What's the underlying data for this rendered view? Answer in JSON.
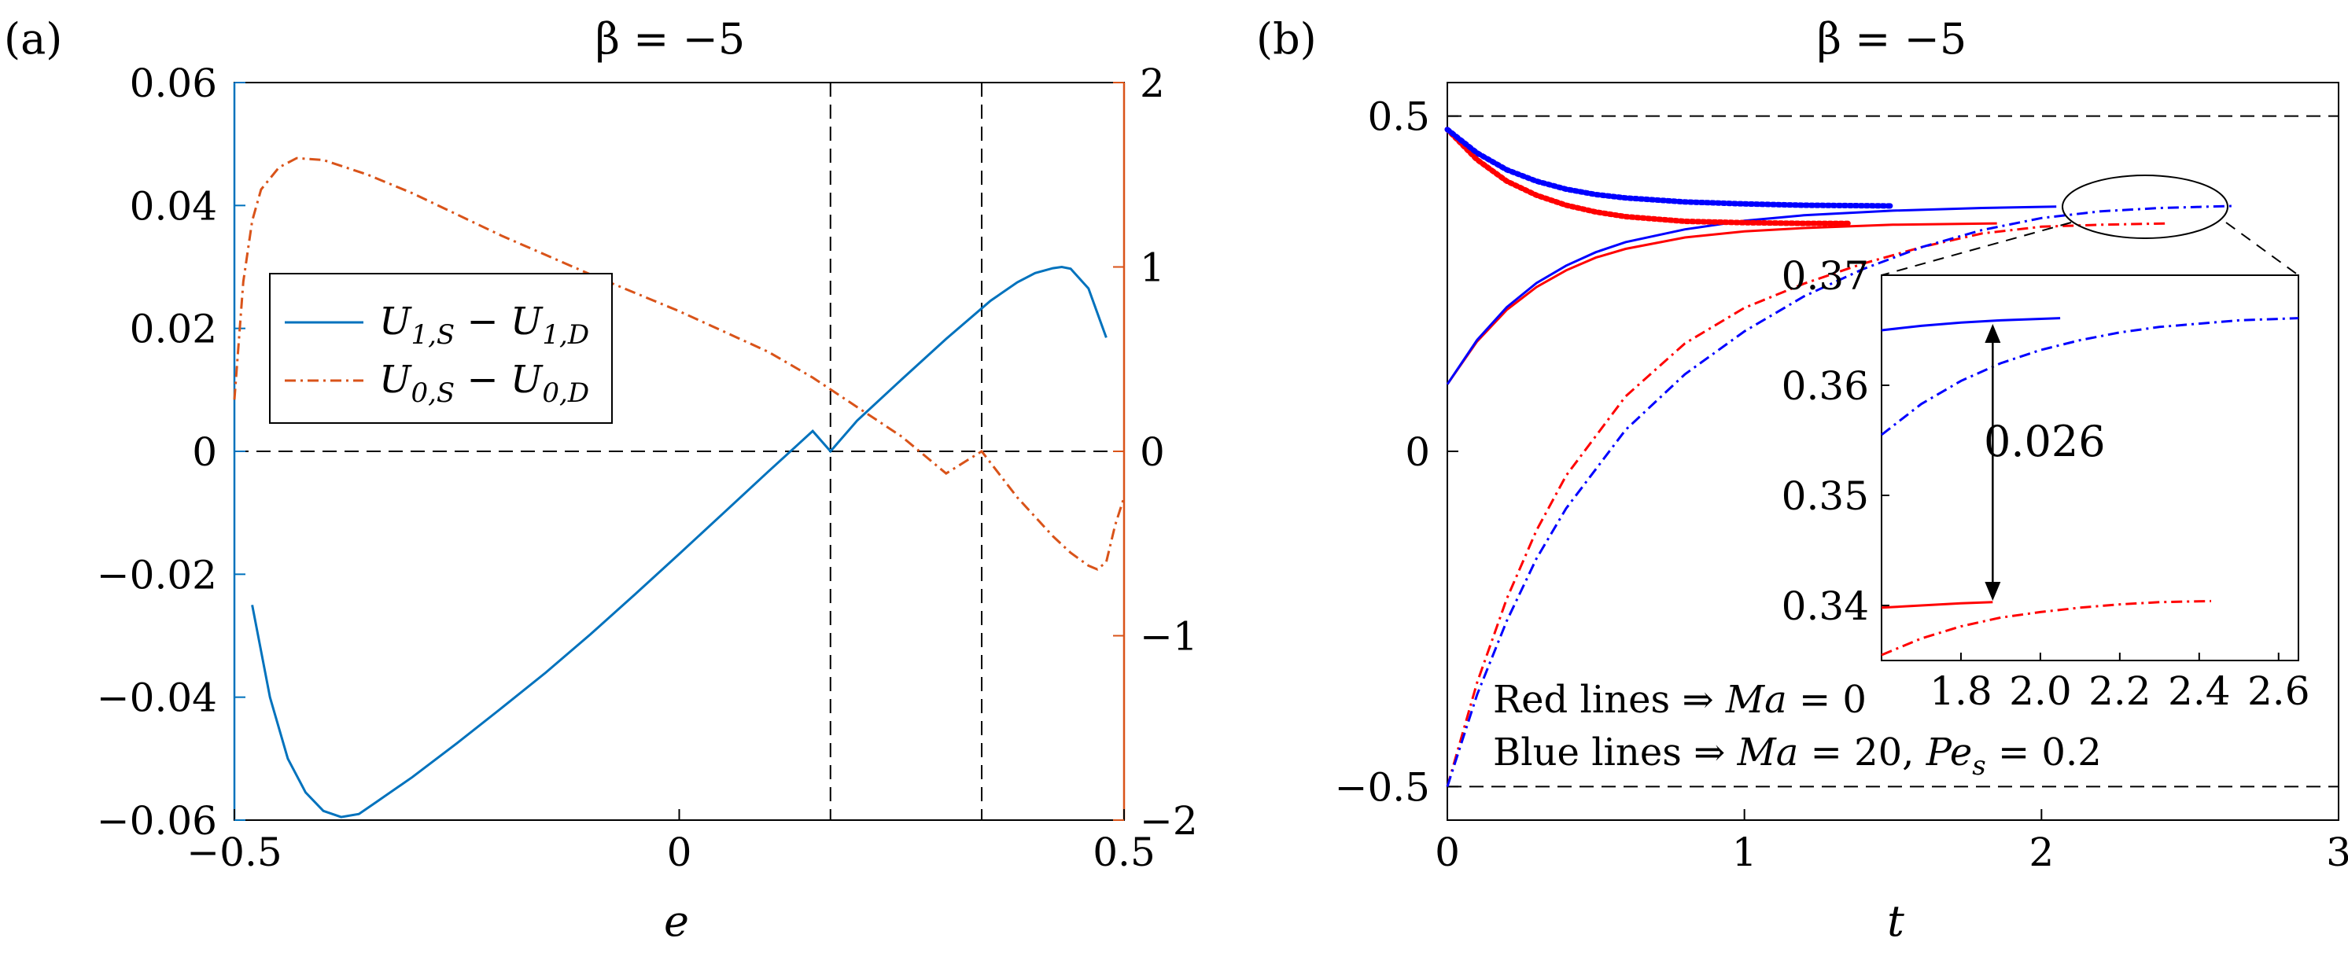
{
  "panels": {
    "a": {
      "label": "(a)",
      "title": "β = −5",
      "xlabel": "e",
      "ylim_left": [
        -0.06,
        0.06
      ],
      "ylim_right": [
        -2,
        2
      ],
      "xlim": [
        -0.5,
        0.5
      ],
      "x_ticks": [
        "−0.5",
        "0",
        "0.5"
      ],
      "left_ticks": [
        "−0.06",
        "−0.04",
        "−0.02",
        "0",
        "0.02",
        "0.04",
        "0.06"
      ],
      "right_ticks": [
        "−2",
        "−1",
        "0",
        "1",
        "2"
      ],
      "legend": [
        {
          "main": "U",
          "sub": "1,S",
          "minus": " − ",
          "main2": "U",
          "sub2": "1,D"
        },
        {
          "main": "U",
          "sub": "0,S",
          "minus": " − ",
          "main2": "U",
          "sub2": "0,D"
        }
      ],
      "colors": {
        "left_axis": "#0072BD",
        "right_axis": "#D95319"
      }
    },
    "b": {
      "label": "(b)",
      "title": "β = −5",
      "xlabel": "t",
      "xlim": [
        0,
        3
      ],
      "ylim": [
        -0.55,
        0.55
      ],
      "x_ticks": [
        "0",
        "1",
        "2",
        "3"
      ],
      "y_ticks": [
        "−0.5",
        "0",
        "0.5"
      ],
      "inset": {
        "xlim": [
          1.6,
          2.65
        ],
        "ylim": [
          0.335,
          0.37
        ],
        "x_ticks": [
          "1.8",
          "2.0",
          "2.2",
          "2.4",
          "2.6"
        ],
        "y_ticks": [
          "0.34",
          "0.35",
          "0.36",
          "0.37"
        ],
        "gap_label": "0.026"
      },
      "notes": [
        {
          "pre": "Red lines ⇒ ",
          "expr": "Ma",
          "post": " = 0"
        },
        {
          "pre": "Blue lines ⇒ ",
          "expr": "Ma",
          "mid": " = 20, ",
          "expr2": "Pe",
          "sub2": "s",
          "post": " = 0.2"
        }
      ],
      "colors": {
        "red": "#FF0000",
        "blue": "#0000FF"
      }
    }
  },
  "chart_data": [
    {
      "type": "line",
      "title": "β = −5",
      "xlabel": "e",
      "ylabel": "",
      "xlim": [
        -0.5,
        0.5
      ],
      "ylim": [
        -0.06,
        0.06
      ],
      "ylim_right": [
        -2,
        2
      ],
      "reference_lines": {
        "horizontal": [
          0
        ],
        "vertical": [
          0.17,
          0.34
        ]
      },
      "series": [
        {
          "name": "U_{1,S} − U_{1,D}",
          "axis": "left",
          "style": "solid",
          "color": "#0072BD",
          "x": [
            -0.48,
            -0.46,
            -0.44,
            -0.42,
            -0.4,
            -0.38,
            -0.36,
            -0.34,
            -0.3,
            -0.25,
            -0.2,
            -0.15,
            -0.1,
            -0.05,
            0.0,
            0.05,
            0.1,
            0.15,
            0.17,
            0.2,
            0.25,
            0.3,
            0.35,
            0.38,
            0.4,
            0.42,
            0.43,
            0.44,
            0.46,
            0.48
          ],
          "y": [
            -0.025,
            -0.04,
            -0.05,
            -0.0555,
            -0.0585,
            -0.0595,
            -0.059,
            -0.057,
            -0.053,
            -0.0475,
            -0.0418,
            -0.036,
            -0.0298,
            -0.0233,
            -0.0167,
            -0.01,
            -0.0033,
            0.0033,
            0.0,
            0.005,
            0.0117,
            0.0183,
            0.0245,
            0.0275,
            0.029,
            0.0298,
            0.03,
            0.0297,
            0.0265,
            0.0185
          ]
        },
        {
          "name": "U_{0,S} − U_{0,D}",
          "axis": "right",
          "style": "dash-dot",
          "color": "#D95319",
          "x": [
            -0.5,
            -0.49,
            -0.48,
            -0.47,
            -0.45,
            -0.43,
            -0.4,
            -0.35,
            -0.3,
            -0.2,
            -0.1,
            0.0,
            0.1,
            0.15,
            0.2,
            0.25,
            0.3,
            0.34,
            0.38,
            0.42,
            0.44,
            0.46,
            0.47,
            0.48,
            0.49,
            0.5
          ],
          "y": [
            0.28,
            0.92,
            1.25,
            1.42,
            1.54,
            1.59,
            1.58,
            1.5,
            1.4,
            1.17,
            0.96,
            0.76,
            0.54,
            0.4,
            0.24,
            0.08,
            -0.12,
            0.0,
            -0.25,
            -0.46,
            -0.55,
            -0.62,
            -0.64,
            -0.6,
            -0.4,
            -0.25
          ]
        }
      ]
    },
    {
      "type": "line",
      "title": "β = −5",
      "xlabel": "t",
      "ylabel": "",
      "xlim": [
        0,
        3
      ],
      "ylim": [
        -0.55,
        0.55
      ],
      "reference_lines": {
        "horizontal": [
          0.5,
          -0.5
        ]
      },
      "series": [
        {
          "name": "red solid (Ma = 0)",
          "color": "#FF0000",
          "style": "solid",
          "x": [
            0,
            0.1,
            0.2,
            0.3,
            0.4,
            0.5,
            0.6,
            0.8,
            1.0,
            1.2,
            1.5,
            1.85
          ],
          "y": [
            0.1,
            0.164,
            0.211,
            0.245,
            0.27,
            0.289,
            0.302,
            0.319,
            0.328,
            0.333,
            0.338,
            0.34
          ]
        },
        {
          "name": "blue solid (Ma = 20, Pe_s = 0.2)",
          "color": "#0000FF",
          "style": "solid",
          "x": [
            0,
            0.1,
            0.2,
            0.3,
            0.4,
            0.5,
            0.6,
            0.8,
            1.0,
            1.2,
            1.5,
            1.8,
            2.05
          ],
          "y": [
            0.1,
            0.166,
            0.215,
            0.251,
            0.277,
            0.297,
            0.312,
            0.331,
            0.344,
            0.352,
            0.359,
            0.363,
            0.365
          ]
        },
        {
          "name": "red dash-dot (Ma = 0)",
          "color": "#FF0000",
          "style": "dash-dot",
          "x": [
            0,
            0.1,
            0.2,
            0.3,
            0.4,
            0.6,
            0.8,
            1.0,
            1.2,
            1.4,
            1.6,
            1.8,
            2.0,
            2.2,
            2.43
          ],
          "y": [
            -0.5,
            -0.345,
            -0.22,
            -0.118,
            -0.036,
            0.082,
            0.161,
            0.214,
            0.25,
            0.28,
            0.305,
            0.325,
            0.335,
            0.338,
            0.34
          ]
        },
        {
          "name": "blue dash-dot (Ma = 20, Pe_s = 0.2)",
          "color": "#0000FF",
          "style": "dash-dot",
          "x": [
            0,
            0.1,
            0.2,
            0.3,
            0.4,
            0.6,
            0.8,
            1.0,
            1.2,
            1.4,
            1.6,
            1.8,
            2.0,
            2.2,
            2.4,
            2.65
          ],
          "y": [
            -0.5,
            -0.363,
            -0.253,
            -0.16,
            -0.085,
            0.032,
            0.115,
            0.179,
            0.231,
            0.272,
            0.305,
            0.33,
            0.348,
            0.358,
            0.363,
            0.366
          ]
        },
        {
          "name": "red dotted (Ma = 0)",
          "color": "#FF0000",
          "style": "dotted",
          "x": [
            0,
            0.1,
            0.2,
            0.3,
            0.4,
            0.5,
            0.6,
            0.8,
            1.0,
            1.2,
            1.35
          ],
          "y": [
            0.48,
            0.435,
            0.403,
            0.382,
            0.367,
            0.357,
            0.35,
            0.343,
            0.341,
            0.34,
            0.34
          ]
        },
        {
          "name": "blue dotted (Ma = 20, Pe_s = 0.2)",
          "color": "#0000FF",
          "style": "dotted",
          "x": [
            0,
            0.1,
            0.2,
            0.3,
            0.4,
            0.5,
            0.6,
            0.8,
            1.0,
            1.2,
            1.5
          ],
          "y": [
            0.48,
            0.445,
            0.42,
            0.403,
            0.391,
            0.383,
            0.378,
            0.372,
            0.369,
            0.367,
            0.366
          ]
        }
      ],
      "inset": {
        "xlim": [
          1.6,
          2.65
        ],
        "ylim": [
          0.335,
          0.37
        ],
        "annotation": {
          "text": "0.026",
          "from": 0.366,
          "to": 0.34,
          "x": 1.88
        },
        "series": [
          {
            "name": "blue solid",
            "color": "#0000FF",
            "style": "solid",
            "x": [
              1.6,
              1.7,
              1.8,
              1.9,
              2.05
            ],
            "y": [
              0.365,
              0.3654,
              0.3657,
              0.3659,
              0.3661
            ]
          },
          {
            "name": "blue dash-dot",
            "color": "#0000FF",
            "style": "dash-dot",
            "x": [
              1.6,
              1.7,
              1.8,
              1.9,
              2.0,
              2.1,
              2.2,
              2.3,
              2.4,
              2.5,
              2.65
            ],
            "y": [
              0.3555,
              0.3583,
              0.3604,
              0.362,
              0.3632,
              0.3641,
              0.3648,
              0.3653,
              0.3656,
              0.3659,
              0.3661
            ]
          },
          {
            "name": "red solid",
            "color": "#FF0000",
            "style": "solid",
            "x": [
              1.6,
              1.7,
              1.8,
              1.88
            ],
            "y": [
              0.3398,
              0.34,
              0.3402,
              0.3403
            ]
          },
          {
            "name": "red dash-dot",
            "color": "#FF0000",
            "style": "dash-dot",
            "x": [
              1.6,
              1.7,
              1.8,
              1.9,
              2.0,
              2.1,
              2.2,
              2.3,
              2.43
            ],
            "y": [
              0.3355,
              0.337,
              0.3381,
              0.3389,
              0.3394,
              0.3398,
              0.3401,
              0.3403,
              0.3404
            ]
          }
        ]
      }
    }
  ]
}
